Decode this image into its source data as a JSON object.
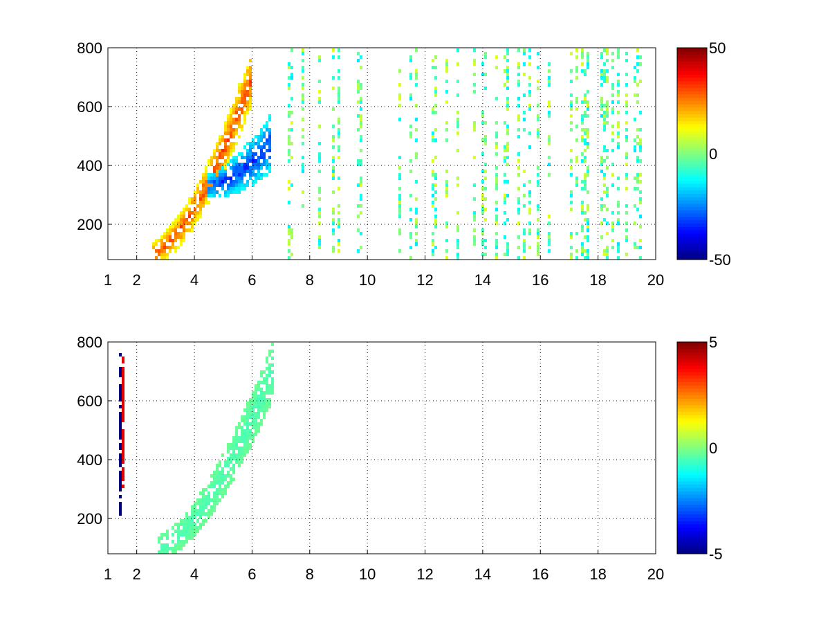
{
  "chart_data": [
    {
      "type": "heatmap",
      "title": "",
      "xlabel": "",
      "ylabel": "",
      "xlim": [
        1,
        20
      ],
      "ylim": [
        80,
        800
      ],
      "xticks": [
        1,
        2,
        4,
        6,
        8,
        10,
        12,
        14,
        16,
        18,
        20
      ],
      "xtick_labels": [
        "1",
        "2",
        "4",
        "6",
        "8",
        "10",
        "12",
        "14",
        "16",
        "18",
        "20"
      ],
      "yticks": [
        200,
        400,
        600,
        800
      ],
      "ytick_labels": [
        "200",
        "400",
        "600",
        "800"
      ],
      "grid": true,
      "colormap": "jet",
      "clim": [
        -50,
        50
      ],
      "colorbar_ticks": [
        50,
        0,
        -50
      ],
      "colorbar_tick_labels": [
        "50",
        "0",
        "-50"
      ],
      "features": [
        {
          "kind": "ridge",
          "x_start": 2.5,
          "x_end": 6.0,
          "y_start": 100,
          "y_end": 700,
          "value": 35
        },
        {
          "kind": "ridge",
          "x_start": 4.5,
          "x_end": 6.7,
          "y_start": 330,
          "y_end": 480,
          "value": -38
        },
        {
          "kind": "scattered_columns",
          "x_start": 7.0,
          "x_end": 20.0,
          "value_range": [
            -15,
            10
          ]
        }
      ]
    },
    {
      "type": "heatmap",
      "title": "",
      "xlabel": "",
      "ylabel": "",
      "xlim": [
        1,
        20
      ],
      "ylim": [
        80,
        800
      ],
      "xticks": [
        1,
        2,
        4,
        6,
        8,
        10,
        12,
        14,
        16,
        18,
        20
      ],
      "xtick_labels": [
        "1",
        "2",
        "4",
        "6",
        "8",
        "10",
        "12",
        "14",
        "16",
        "18",
        "20"
      ],
      "yticks": [
        200,
        400,
        600,
        800
      ],
      "ytick_labels": [
        "200",
        "400",
        "600",
        "800"
      ],
      "grid": true,
      "colormap": "jet",
      "clim": [
        -5,
        5
      ],
      "colorbar_ticks": [
        5,
        0,
        -5
      ],
      "colorbar_tick_labels": [
        "5",
        "0",
        "-5"
      ],
      "features": [
        {
          "kind": "ridge",
          "x_start": 2.7,
          "x_end": 6.8,
          "y_start": 100,
          "y_end": 720,
          "value": -0.6
        },
        {
          "kind": "streak",
          "x": 1.45,
          "y_start": 210,
          "y_end": 790,
          "value": -5
        },
        {
          "kind": "streak",
          "x": 1.55,
          "y_start": 300,
          "y_end": 750,
          "value": 4
        }
      ]
    }
  ]
}
